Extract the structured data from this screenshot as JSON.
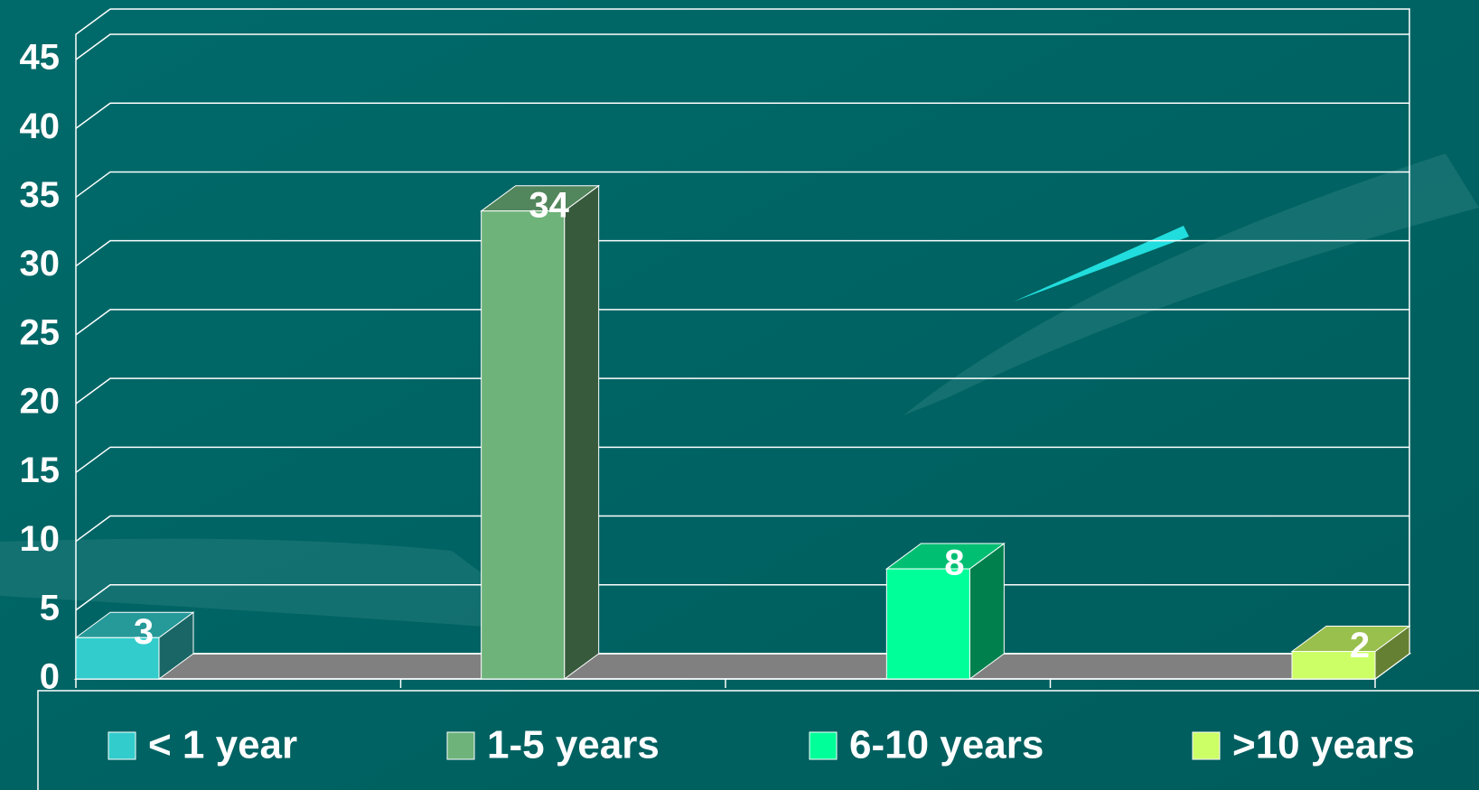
{
  "chart_data": {
    "type": "bar3d",
    "series": [
      {
        "name": "< 1 year",
        "color": "#33cccc",
        "values": [
          3
        ]
      },
      {
        "name": "1-5 years",
        "color": "#6db37a",
        "values": [
          34
        ]
      },
      {
        "name": "6-10 years",
        "color": "#00ff99",
        "values": [
          8
        ]
      },
      {
        "name": ">10 years",
        "color": "#ccff66",
        "values": [
          2
        ]
      }
    ],
    "ylim": [
      0,
      45
    ],
    "yticks": [
      0,
      5,
      10,
      15,
      20,
      25,
      30,
      35,
      40,
      45
    ],
    "grid": true,
    "legend": "bottom"
  }
}
